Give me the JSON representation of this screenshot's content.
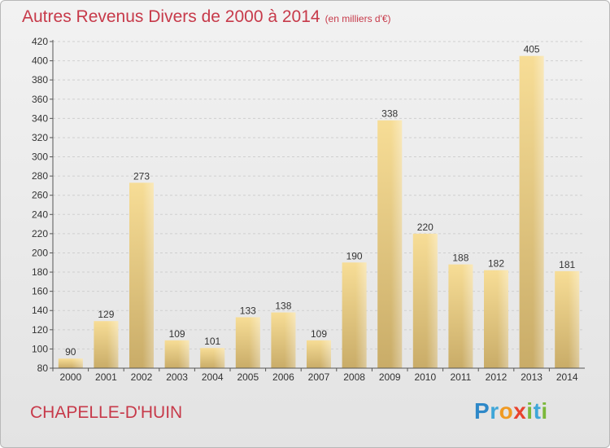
{
  "title": "Autres Revenus Divers de 2000 à 2014",
  "subtitle": "(en milliers d'€)",
  "commune": "CHAPELLE-D'HUIN",
  "logo": {
    "letters": [
      "P",
      "r",
      "o",
      "x",
      "i",
      "t",
      "i"
    ],
    "colors": [
      "#2e88c8",
      "#3fa6d8",
      "#f09a22",
      "#e8432e",
      "#7bb83b",
      "#3fa6d8",
      "#7bb83b"
    ]
  },
  "chart_data": {
    "type": "bar",
    "title": "Autres Revenus Divers de 2000 à 2014",
    "subtitle": "(en milliers d'€)",
    "xlabel": "",
    "ylabel": "",
    "categories": [
      "2000",
      "2001",
      "2002",
      "2003",
      "2004",
      "2005",
      "2006",
      "2007",
      "2008",
      "2009",
      "2010",
      "2011",
      "2012",
      "2013",
      "2014"
    ],
    "values": [
      90,
      129,
      273,
      109,
      101,
      133,
      138,
      109,
      190,
      338,
      220,
      188,
      182,
      405,
      181
    ],
    "ylim": [
      80,
      420
    ],
    "yticks": [
      80,
      100,
      120,
      140,
      160,
      180,
      200,
      220,
      240,
      260,
      280,
      300,
      320,
      340,
      360,
      380,
      400,
      420
    ],
    "grid": true,
    "colors": {
      "bar_light": "#f7dd96",
      "bar_dark": "#c9ac68",
      "grid": "#cfcfcf",
      "axis": "#555555",
      "title": "#c73a4a"
    }
  }
}
